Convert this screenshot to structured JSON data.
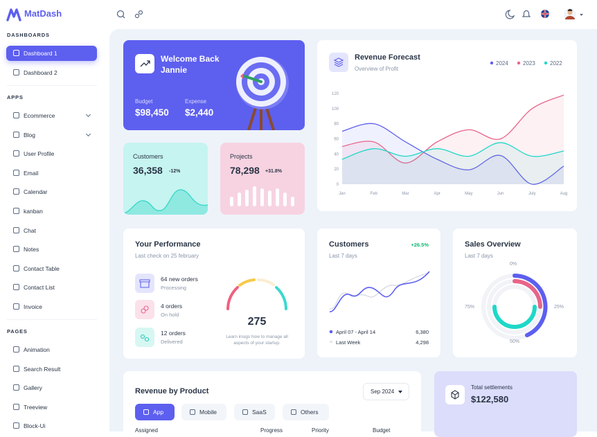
{
  "brand": "MatDash",
  "sidebar": {
    "sections": [
      {
        "title": "DASHBOARDS",
        "items": [
          "Dashboard 1",
          "Dashboard 2"
        ]
      },
      {
        "title": "APPS",
        "items": [
          "Ecommerce",
          "Blog",
          "User Profile",
          "Email",
          "Calendar",
          "kanban",
          "Chat",
          "Notes",
          "Contact Table",
          "Contact List",
          "Invoice"
        ]
      },
      {
        "title": "PAGES",
        "items": [
          "Animation",
          "Search Result",
          "Gallery",
          "Treeview",
          "Block-Ui"
        ]
      }
    ]
  },
  "welcome": {
    "title": "Welcome Back Jannie",
    "stats": [
      {
        "label": "Budget",
        "value": "$98,450"
      },
      {
        "label": "Expense",
        "value": "$2,440"
      }
    ]
  },
  "kpis": [
    {
      "label": "Customers",
      "value": "36,358",
      "change": "-12%"
    },
    {
      "label": "Projects",
      "value": "78,298",
      "change": "+31.8%"
    }
  ],
  "chart_data": {
    "type": "line",
    "title": "Revenue Forecast",
    "subtitle": "Overview of Profit",
    "categories": [
      "Jan",
      "Feb",
      "Mar",
      "Apr",
      "May",
      "Jun",
      "July",
      "Aug"
    ],
    "series": [
      {
        "name": "2024",
        "color": "#5d5fef",
        "values": [
          70,
          80,
          56,
          33,
          19,
          38,
          0,
          24
        ]
      },
      {
        "name": "2023",
        "color": "#e8658a",
        "values": [
          50,
          56,
          28,
          56,
          72,
          60,
          100,
          118
        ]
      },
      {
        "name": "2022",
        "color": "#1ed8c8",
        "values": [
          33,
          47,
          37,
          47,
          37,
          55,
          37,
          44
        ]
      }
    ],
    "ylim": [
      0,
      120
    ],
    "yticks": [
      0,
      20,
      40,
      60,
      80,
      100,
      120
    ],
    "grid": false,
    "legend": "top-right"
  },
  "performance": {
    "title": "Your Performance",
    "subtitle": "Last check on 25 february",
    "items": [
      {
        "title": "64 new orders",
        "status": "Processing"
      },
      {
        "title": "4 orders",
        "status": "On hold"
      },
      {
        "title": "12 orders",
        "status": "Delivered"
      }
    ],
    "gauge_value": "275",
    "note": "Learn insigs how to manage all aspects of your startup."
  },
  "customers": {
    "title": "Customers",
    "change": "+26.5%",
    "subtitle": "Last 7 days",
    "legend": [
      {
        "label": "April 07 - April 14",
        "value": "6,380"
      },
      {
        "label": "Last Week",
        "value": "4,298"
      }
    ]
  },
  "sales_overview": {
    "title": "Sales Overview",
    "subtitle": "Last 7 days",
    "labels": [
      "0%",
      "25%",
      "50%",
      "75%"
    ]
  },
  "revenue_by_product": {
    "title": "Revenue by Product",
    "period": "Sep 2024",
    "tabs": [
      "App",
      "Mobile",
      "SaaS",
      "Others"
    ],
    "columns": [
      "Assigned",
      "Progress",
      "Priority",
      "Budget"
    ]
  },
  "settlements": {
    "label": "Total settlements",
    "value": "$122,580"
  }
}
